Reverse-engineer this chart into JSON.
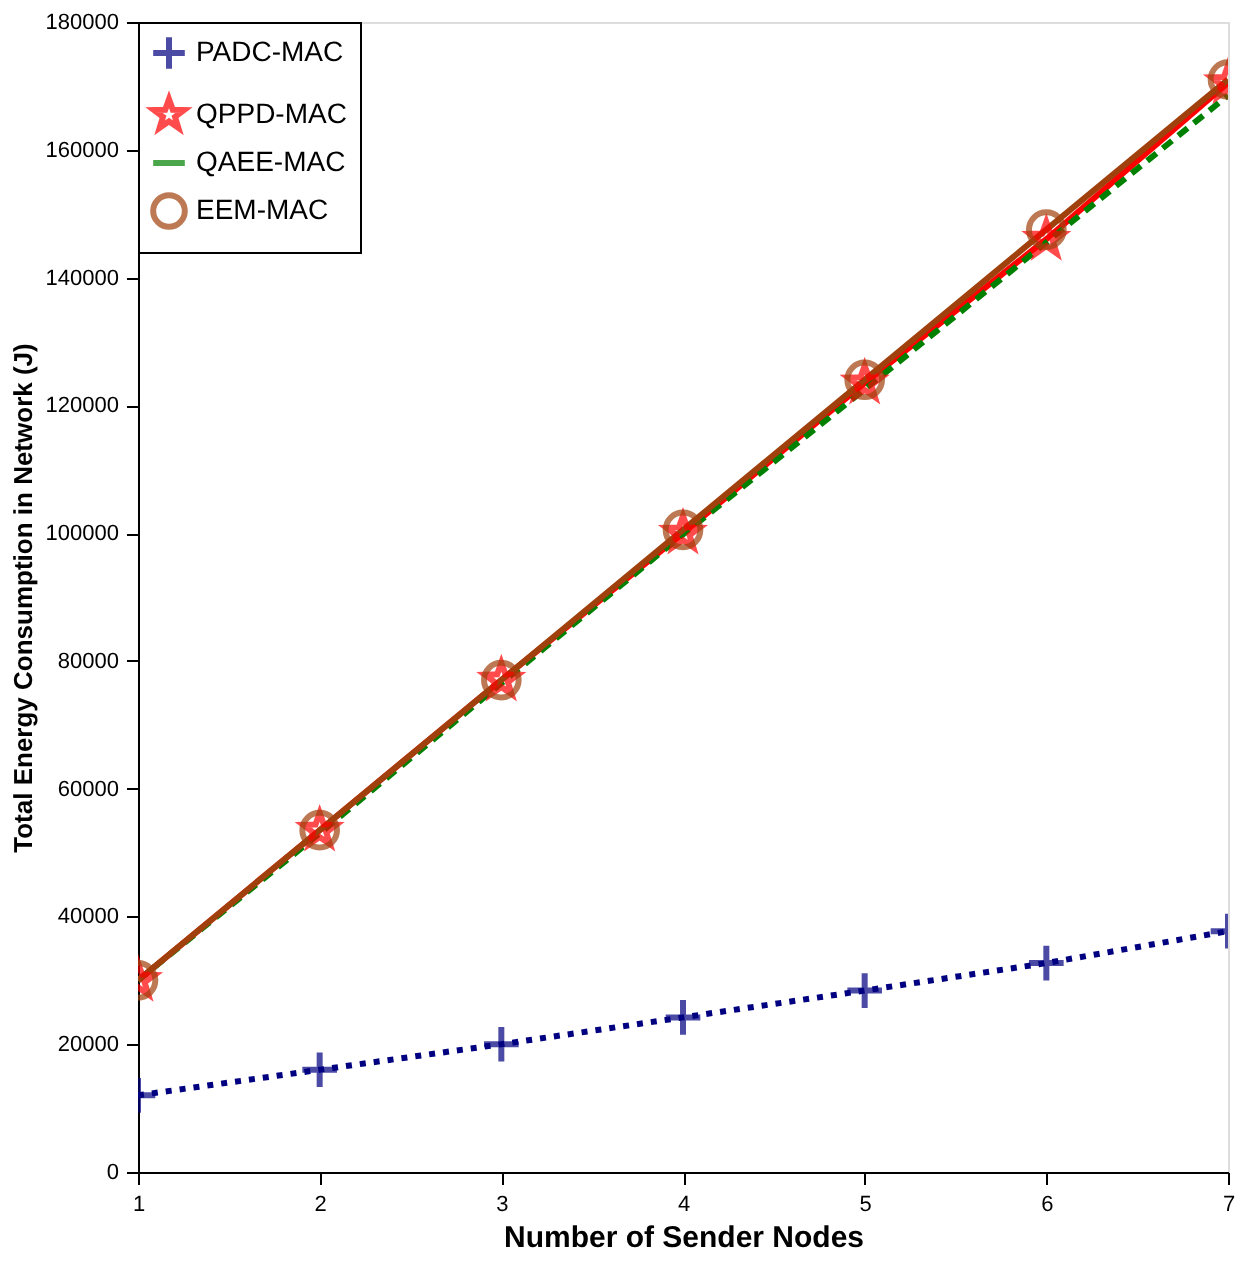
{
  "chart_data": {
    "type": "line",
    "xlabel": "Number of Sender Nodes",
    "ylabel": "Total Energy Consumption in Network (J)",
    "x": [
      1,
      2,
      3,
      4,
      5,
      6,
      7
    ],
    "series": [
      {
        "name": "PADC-MAC",
        "color": "#000080",
        "marker": "cross",
        "line_style": "dotted",
        "values": [
          12000,
          16000,
          20000,
          24200,
          28400,
          32700,
          37700
        ]
      },
      {
        "name": "QPPD-MAC",
        "color": "#ff0000",
        "marker": "star",
        "line_style": "solid",
        "values": [
          30000,
          53500,
          77000,
          100000,
          123500,
          146000,
          170500
        ]
      },
      {
        "name": "QAEE-MAC",
        "color": "#008000",
        "marker": "none",
        "line_style": "dashed",
        "values": [
          30000,
          53000,
          76500,
          99800,
          122500,
          145500,
          168500
        ]
      },
      {
        "name": "EEM-MAC",
        "color": "#a0410d",
        "marker": "circle",
        "line_style": "solid",
        "values": [
          30000,
          53500,
          77000,
          100500,
          124000,
          147500,
          171000
        ]
      }
    ],
    "xlim": [
      1,
      7
    ],
    "xticks": [
      1,
      2,
      3,
      4,
      5,
      6,
      7
    ],
    "ylim": [
      0,
      180000
    ],
    "yticks": [
      0,
      20000,
      40000,
      60000,
      80000,
      100000,
      120000,
      140000,
      160000,
      180000
    ],
    "grid": false,
    "legend": "top left"
  }
}
